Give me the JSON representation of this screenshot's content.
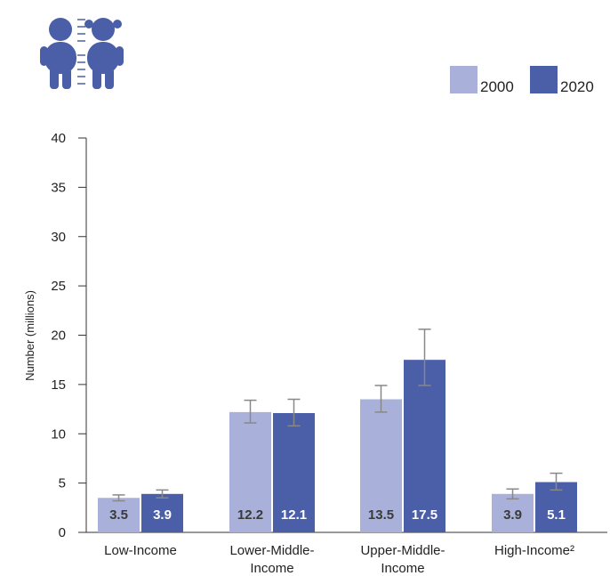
{
  "chart_data": {
    "type": "bar",
    "categories": [
      [
        "Low-Income"
      ],
      [
        "Lower-Middle-",
        "Income"
      ],
      [
        "Upper-Middle-",
        "Income"
      ],
      [
        "High-Income²"
      ]
    ],
    "series": [
      {
        "name": "2000",
        "color": "#a9b1db",
        "values": [
          3.5,
          12.2,
          13.5,
          3.9
        ],
        "error_low": [
          3.2,
          11.1,
          12.2,
          3.4
        ],
        "error_high": [
          3.8,
          13.4,
          14.9,
          4.4
        ],
        "label_color": "#3a3a3a"
      },
      {
        "name": "2020",
        "color": "#4a5fa8",
        "values": [
          3.9,
          12.1,
          17.5,
          5.1
        ],
        "error_low": [
          3.5,
          10.8,
          14.9,
          4.3
        ],
        "error_high": [
          4.3,
          13.5,
          20.6,
          6.0
        ],
        "label_color": "#ffffff"
      }
    ],
    "data_labels": [
      [
        "3.5",
        "12.2",
        "13.5",
        "3.9"
      ],
      [
        "3.9",
        "12.1",
        "17.5",
        "5.1"
      ]
    ],
    "ylabel": "Number (millions)",
    "ylim": [
      0,
      40
    ],
    "yticks": [
      0,
      5,
      10,
      15,
      20,
      25,
      30,
      35,
      40
    ],
    "legend_placement": "top-right",
    "grid": false,
    "icon": "children-icon",
    "icon_color": "#4a5fa8",
    "errorbar_color": "#888888"
  }
}
